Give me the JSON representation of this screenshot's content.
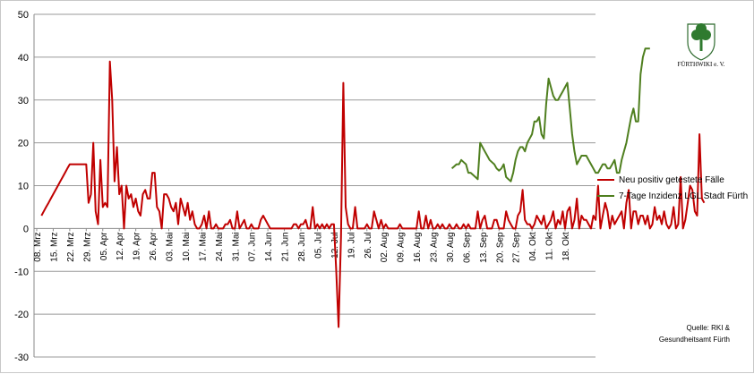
{
  "chart_data": {
    "type": "line",
    "ylim": [
      -30,
      50
    ],
    "yticks": [
      -30,
      -20,
      -10,
      0,
      10,
      20,
      30,
      40,
      50
    ],
    "grid": true,
    "legend_position": "right",
    "x_tick_labels": [
      "08. Mrz",
      "15. Mrz",
      "22. Mrz",
      "29. Mrz",
      "05. Apr",
      "12. Apr",
      "19. Apr",
      "26. Apr",
      "03. Mai",
      "10. Mai",
      "17. Mai",
      "24. Mai",
      "31. Mai",
      "07. Jun",
      "14. Jun",
      "21. Jun",
      "28. Jun",
      "05. Jul",
      "12. Jul",
      "19. Jul",
      "26. Jul",
      "02. Aug",
      "09. Aug",
      "16. Aug",
      "23. Aug",
      "30. Aug",
      "06. Sep",
      "13. Sep",
      "20. Sep",
      "27. Sep",
      "04. Okt",
      "11. Okt",
      "18. Okt"
    ],
    "series": [
      {
        "name": "Neu positiv getestete Fälle",
        "color": "#c00000",
        "start_index": 2,
        "values": [
          3,
          4,
          5,
          6,
          7,
          8,
          9,
          10,
          11,
          12,
          13,
          14,
          15,
          15,
          15,
          15,
          15,
          15,
          15,
          15,
          6,
          8,
          20,
          4,
          1,
          16,
          5,
          6,
          5,
          39,
          30,
          11,
          19,
          8,
          10,
          0,
          10,
          7,
          8,
          5,
          7,
          4,
          3,
          8,
          9,
          7,
          7,
          13,
          13,
          5,
          4,
          0,
          8,
          8,
          7,
          5,
          4,
          6,
          1,
          7,
          5,
          3,
          6,
          2,
          4,
          1,
          0,
          0,
          1,
          3,
          0,
          4,
          0,
          0,
          1,
          0,
          0,
          0,
          1,
          1,
          2,
          0,
          0,
          4,
          0,
          1,
          2,
          0,
          0,
          1,
          0,
          0,
          0,
          2,
          3,
          2,
          1,
          0,
          0,
          0,
          0,
          0,
          0,
          0,
          0,
          0,
          0,
          1,
          1,
          0,
          1,
          1,
          2,
          0,
          0,
          5,
          0,
          1,
          0,
          1,
          0,
          1,
          0,
          1,
          1,
          -10,
          -23,
          -2,
          34,
          5,
          1,
          0,
          0,
          5,
          0,
          0,
          0,
          0,
          1,
          0,
          0,
          4,
          2,
          0,
          2,
          0,
          1,
          0,
          0,
          0,
          0,
          0,
          1,
          0,
          0,
          0,
          0,
          0,
          0,
          0,
          4,
          0,
          0,
          3,
          0,
          2,
          0,
          0,
          1,
          0,
          1,
          0,
          0,
          1,
          0,
          0,
          1,
          0,
          0,
          1,
          0,
          1,
          0,
          0,
          0,
          4,
          0,
          2,
          3,
          0,
          0,
          0,
          2,
          2,
          0,
          0,
          0,
          4,
          2,
          1,
          0,
          0,
          3,
          4,
          9,
          2,
          1,
          1,
          0,
          1,
          3,
          2,
          1,
          3,
          0,
          1,
          2,
          4,
          0,
          2,
          1,
          4,
          0,
          4,
          5,
          0,
          2,
          7,
          0,
          3,
          2,
          2,
          1,
          0,
          3,
          2,
          10,
          0,
          3,
          6,
          4,
          0,
          3,
          1,
          2,
          3,
          4,
          0,
          6,
          9,
          0,
          4,
          4,
          1,
          3,
          3,
          1,
          3,
          0,
          1,
          5,
          2,
          3,
          1,
          4,
          1,
          0,
          1,
          5,
          0,
          1,
          12,
          0,
          2,
          6,
          10,
          9,
          4,
          3,
          22,
          7,
          6
        ]
      },
      {
        "name": "7-Tage Inzidenz LGL Stadt Fürth",
        "color": "#4f7f1f",
        "start_index": 176,
        "values": [
          14,
          14.5,
          15,
          15,
          16,
          15.5,
          15,
          13,
          13,
          12.5,
          12,
          11.5,
          20,
          19,
          18,
          17,
          16,
          15.5,
          15,
          14,
          13.5,
          14,
          15,
          12,
          11.5,
          11,
          13,
          16,
          18,
          19,
          19,
          18,
          20,
          21,
          22,
          25,
          25,
          26,
          22,
          21,
          29,
          35,
          33,
          31,
          30,
          30,
          31,
          32,
          33,
          34,
          28,
          22,
          18,
          15,
          16,
          17,
          17,
          17,
          16,
          15,
          14,
          13,
          13,
          14,
          15,
          15,
          14,
          14,
          15,
          16,
          13,
          13,
          16,
          18,
          20,
          23,
          26,
          28,
          25,
          25,
          36,
          40,
          42,
          42,
          42
        ]
      }
    ]
  },
  "legend": {
    "items": [
      {
        "label": "Neu positiv getestete Fälle",
        "color": "#c00000"
      },
      {
        "label": "7-Tage Inzidenz LGL Stadt Fürth",
        "color": "#4f7f1f"
      }
    ]
  },
  "source": {
    "line1": "Quelle: RKI &",
    "line2": "Gesundheitsamt Fürth"
  },
  "logo": {
    "text": "FÜRTHWIKI e. V.",
    "icon": "cloverleaf-shield-icon"
  }
}
